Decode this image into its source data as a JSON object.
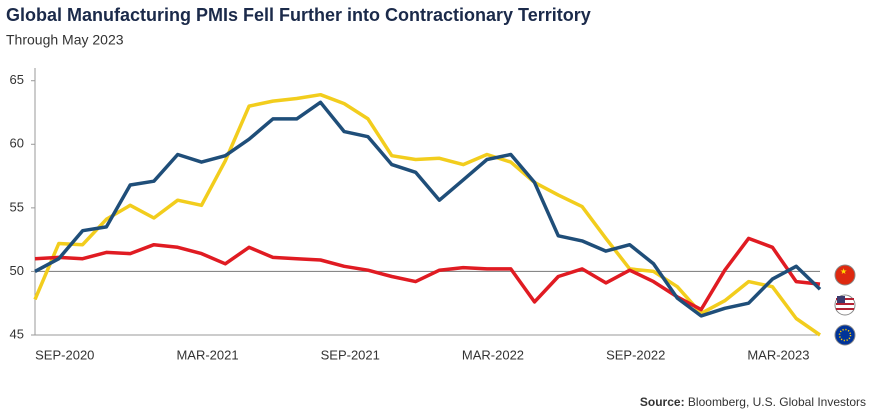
{
  "chart_data": {
    "type": "line",
    "title": "Global Manufacturing PMIs Fell Further into Contractionary Territory",
    "subtitle": "Through May 2023",
    "source_label": "Source:",
    "source": "Bloomberg, U.S. Global Investors",
    "categories": [
      null,
      "SEP-2020",
      null,
      null,
      null,
      null,
      null,
      "MAR-2021",
      null,
      null,
      null,
      null,
      null,
      "SEP-2021",
      null,
      null,
      null,
      null,
      null,
      "MAR-2022",
      null,
      null,
      null,
      null,
      null,
      "SEP-2022",
      null,
      null,
      null,
      null,
      null,
      "MAR-2023",
      null,
      null
    ],
    "series": [
      {
        "color": "#f2cd1d",
        "values": [
          47.8,
          52.2,
          52.1,
          54.1,
          55.2,
          54.2,
          55.6,
          55.2,
          58.7,
          63.0,
          63.4,
          63.6,
          63.9,
          63.2,
          62.0,
          59.1,
          58.8,
          58.9,
          58.4,
          59.2,
          58.6,
          57.0,
          56.0,
          55.1,
          52.6,
          50.2,
          50.0,
          48.8,
          46.7,
          47.7,
          49.2,
          48.8,
          46.3,
          45.0
        ]
      },
      {
        "color": "#e01b22",
        "values": [
          51.0,
          51.1,
          51.0,
          51.5,
          51.4,
          52.1,
          51.9,
          51.4,
          50.6,
          51.9,
          51.1,
          51.0,
          50.9,
          50.4,
          50.1,
          49.6,
          49.2,
          50.1,
          50.3,
          50.2,
          50.2,
          47.6,
          49.6,
          50.2,
          49.1,
          50.1,
          49.2,
          48.0,
          47.0,
          50.1,
          52.6,
          51.9,
          49.2,
          49.0
        ]
      },
      {
        "color": "#1f4e79",
        "values": [
          50.0,
          51.0,
          53.2,
          53.5,
          56.8,
          57.1,
          59.2,
          58.6,
          59.1,
          60.4,
          62.0,
          62.0,
          63.3,
          61.0,
          60.6,
          58.4,
          57.8,
          55.6,
          57.2,
          58.8,
          59.2,
          57.0,
          52.8,
          52.4,
          51.6,
          52.1,
          50.6,
          47.9,
          46.5,
          47.1,
          47.5,
          49.4,
          50.4,
          48.6
        ]
      }
    ],
    "ylim": [
      45,
      66
    ],
    "yticks": [
      45,
      50,
      55,
      60,
      65
    ],
    "reference_line": 50
  }
}
